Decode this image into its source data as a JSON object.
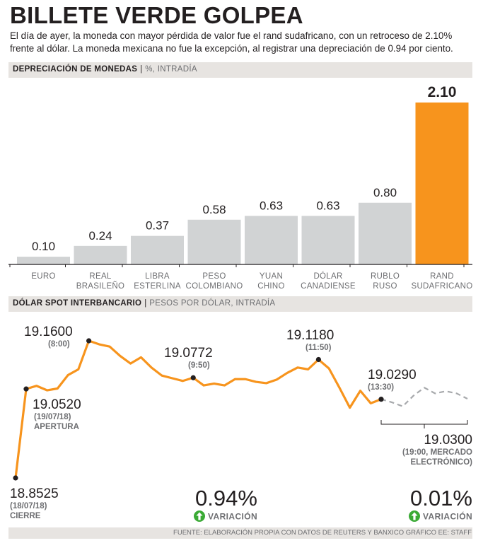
{
  "title": "BILLETE VERDE GOLPEA",
  "subtitle": "El día de ayer, la moneda con mayor pérdida de valor fue el rand sudafricano, con un retroceso de 2.10% frente al dólar. La moneda mexicana no fue la excepción, al registrar una depreciación de 0.94 por ciento.",
  "section1": {
    "title": "DEPRECIACIÓN DE MONEDAS",
    "separator": "|",
    "unit": "%, INTRADÍA"
  },
  "section2": {
    "title": "DÓLAR SPOT INTERBANCARIO",
    "separator": "|",
    "unit": "PESOS POR DÓLAR, INTRADÍA"
  },
  "colors": {
    "accent": "#f7941d",
    "bar": "#d1d3d4",
    "band": "#e7e4e1",
    "text": "#231f20",
    "muted": "#6d6e71",
    "arrow": "#3aaa35",
    "dashed": "#a7a9ac"
  },
  "chart_data": [
    {
      "type": "bar",
      "title": "DEPRECIACIÓN DE MONEDAS",
      "unit": "%, INTRADÍA",
      "categories": [
        [
          "EURO"
        ],
        [
          "REAL",
          "BRASILEÑO"
        ],
        [
          "LIBRA",
          "ESTERLINA"
        ],
        [
          "PESO",
          "COLOMBIANO"
        ],
        [
          "YUAN",
          "CHINO"
        ],
        [
          "DÓLAR",
          "CANADIENSE"
        ],
        [
          "RUBLO",
          "RUSO"
        ],
        [
          "RAND",
          "SUDAFRICANO"
        ]
      ],
      "values": [
        0.1,
        0.24,
        0.37,
        0.58,
        0.63,
        0.63,
        0.8,
        2.1
      ],
      "value_labels": [
        "0.10",
        "0.24",
        "0.37",
        "0.58",
        "0.63",
        "0.63",
        "0.80",
        "2.10"
      ],
      "highlight_index": 7,
      "ylim": [
        0,
        2.1
      ]
    },
    {
      "type": "line",
      "title": "DÓLAR SPOT INTERBANCARIO",
      "unit": "PESOS POR DÓLAR, INTRADÍA",
      "ylim": [
        18.8525,
        19.16
      ],
      "series": [
        {
          "name": "spot",
          "style": "solid",
          "values": [
            18.8525,
            19.052,
            19.059,
            19.049,
            19.053,
            19.083,
            19.096,
            19.16,
            19.152,
            19.147,
            19.126,
            19.109,
            19.123,
            19.1,
            19.082,
            19.076,
            19.07,
            19.0772,
            19.06,
            19.064,
            19.06,
            19.074,
            19.074,
            19.068,
            19.065,
            19.073,
            19.088,
            19.1,
            19.096,
            19.118,
            19.098,
            19.055,
            19.01,
            19.048,
            19.02,
            19.029
          ]
        },
        {
          "name": "mercado electrónico",
          "style": "dashed",
          "values": [
            19.029,
            19.022,
            19.013,
            19.037,
            19.055,
            19.042,
            19.047,
            19.042,
            19.03
          ]
        }
      ],
      "annotations": [
        {
          "value": "18.8525",
          "lines": [
            "(18/07/18)",
            "CIERRE"
          ]
        },
        {
          "value": "19.0520",
          "lines": [
            "(19/07/18)",
            "APERTURA"
          ]
        },
        {
          "value": "19.1600",
          "lines": [
            "(8:00)"
          ]
        },
        {
          "value": "19.0772",
          "lines": [
            "(9:50)"
          ]
        },
        {
          "value": "19.1180",
          "lines": [
            "(11:50)"
          ]
        },
        {
          "value": "19.0290",
          "lines": [
            "(13:30)"
          ]
        },
        {
          "value": "19.0300",
          "lines": [
            "(19:00, MERCADO",
            "ELECTRÓNICO)"
          ]
        }
      ],
      "variations": [
        {
          "value": "0.94%",
          "label": "VARIACIÓN",
          "icon": "up-arrow-icon"
        },
        {
          "value": "0.01%",
          "label": "VARIACIÓN",
          "icon": "up-arrow-icon"
        }
      ]
    }
  ],
  "source": "FUENTE: ELABORACIÓN PROPIA CON DATOS DE REUTERS Y BANXICO  GRÁFICO EE: STAFF"
}
